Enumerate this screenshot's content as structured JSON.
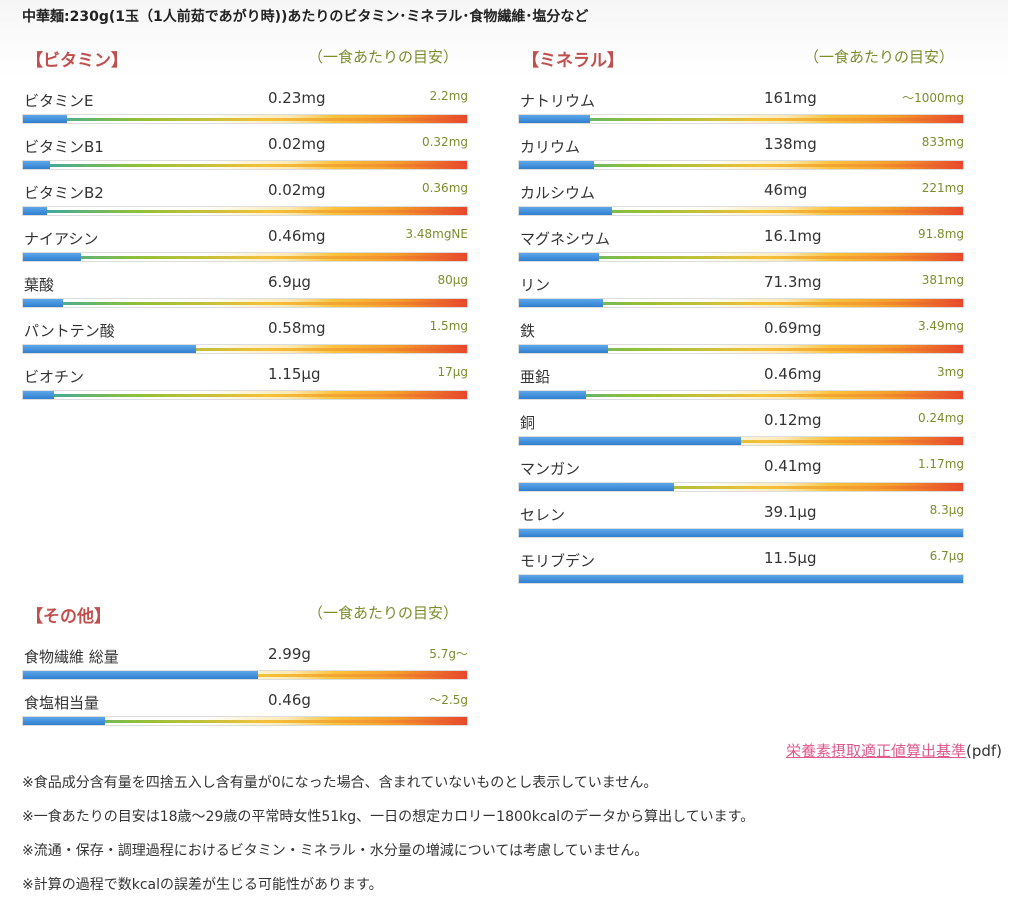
{
  "page_title": "中華麺:230g(1玉（1人前茹であがり時))あたりのビタミン･ミネラル･食物繊維･塩分など",
  "sections": {
    "vitamin": {
      "title": "【ビタミン】",
      "guide": "（一食あたりの目安）",
      "rows": [
        {
          "name": "ビタミンE",
          "value": "0.23mg",
          "target": "2.2mg",
          "level": 0.1
        },
        {
          "name": "ビタミンB1",
          "value": "0.02mg",
          "target": "0.32mg",
          "level": 0.06
        },
        {
          "name": "ビタミンB2",
          "value": "0.02mg",
          "target": "0.36mg",
          "level": 0.055
        },
        {
          "name": "ナイアシン",
          "value": "0.46mg",
          "target": "3.48mgNE",
          "level": 0.13
        },
        {
          "name": "葉酸",
          "value": "6.9μg",
          "target": "80μg",
          "level": 0.09
        },
        {
          "name": "パントテン酸",
          "value": "0.58mg",
          "target": "1.5mg",
          "level": 0.39
        },
        {
          "name": "ビオチン",
          "value": "1.15μg",
          "target": "17μg",
          "level": 0.07
        }
      ]
    },
    "mineral": {
      "title": "【ミネラル】",
      "guide": "（一食あたりの目安）",
      "rows": [
        {
          "name": "ナトリウム",
          "value": "161mg",
          "target": "～1000mg",
          "level": 0.16
        },
        {
          "name": "カリウム",
          "value": "138mg",
          "target": "833mg",
          "level": 0.17
        },
        {
          "name": "カルシウム",
          "value": "46mg",
          "target": "221mg",
          "level": 0.21
        },
        {
          "name": "マグネシウム",
          "value": "16.1mg",
          "target": "91.8mg",
          "level": 0.18
        },
        {
          "name": "リン",
          "value": "71.3mg",
          "target": "381mg",
          "level": 0.19
        },
        {
          "name": "鉄",
          "value": "0.69mg",
          "target": "3.49mg",
          "level": 0.2
        },
        {
          "name": "亜鉛",
          "value": "0.46mg",
          "target": "3mg",
          "level": 0.15
        },
        {
          "name": "銅",
          "value": "0.12mg",
          "target": "0.24mg",
          "level": 0.5
        },
        {
          "name": "マンガン",
          "value": "0.41mg",
          "target": "1.17mg",
          "level": 0.35
        },
        {
          "name": "セレン",
          "value": "39.1μg",
          "target": "8.3μg",
          "level": 1.0
        },
        {
          "name": "モリブデン",
          "value": "11.5μg",
          "target": "6.7μg",
          "level": 1.0
        }
      ]
    },
    "other": {
      "title": "【その他】",
      "guide": "（一食あたりの目安）",
      "rows": [
        {
          "name": "食物繊維 総量",
          "value": "2.99g",
          "target": "5.7g～",
          "level": 0.53
        },
        {
          "name": "食塩相当量",
          "value": "0.46g",
          "target": "～2.5g",
          "level": 0.185
        }
      ]
    }
  },
  "reference_link": {
    "label": "栄養素摂取適正値算出基準",
    "suffix": "(pdf)"
  },
  "notes": [
    "※食品成分含有量を四捨五入し含有量が0になった場合、含まれていないものとし表示していません。",
    "※一食あたりの目安は18歳～29歳の平常時女性51kg、一日の想定カロリー1800kcalのデータから算出しています。",
    "※流通・保存・調理過程におけるビタミン・ミネラル・水分量の増減については考慮していません。",
    "※計算の過程で数kcalの誤差が生じる可能性があります。"
  ]
}
